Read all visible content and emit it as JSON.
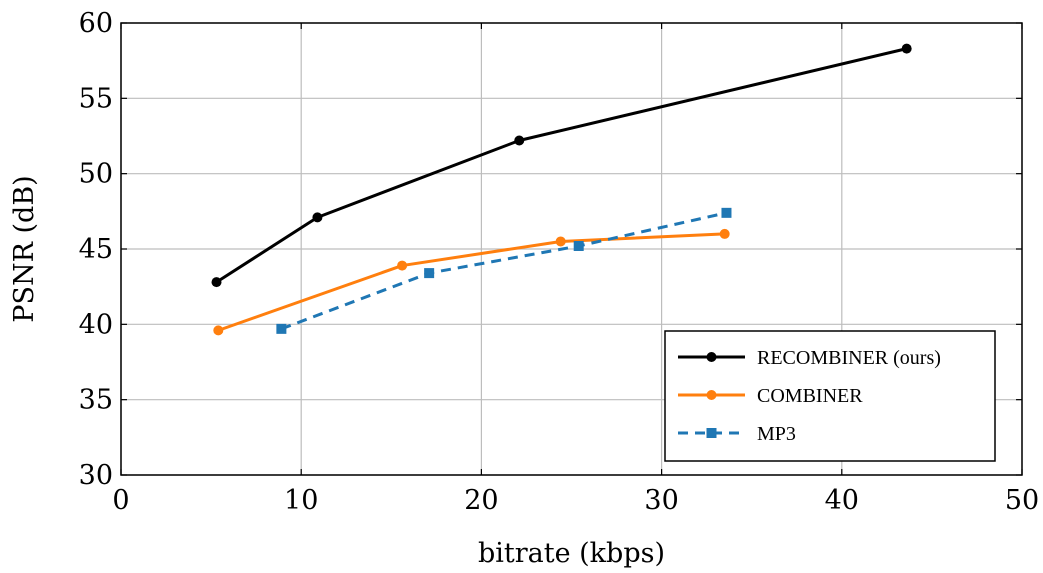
{
  "chart_data": {
    "type": "line",
    "title": "",
    "xlabel": "bitrate (kbps)",
    "ylabel": "PSNR (dB)",
    "xlim": [
      0,
      50
    ],
    "ylim": [
      30,
      60
    ],
    "xticks": [
      0,
      10,
      20,
      30,
      40,
      50
    ],
    "yticks": [
      30,
      35,
      40,
      45,
      50,
      55,
      60
    ],
    "grid": true,
    "legend_position": "bottom-right",
    "series": [
      {
        "name": "RECOMBINER (ours)",
        "color": "#000000",
        "marker": "circle",
        "line_style": "solid",
        "x": [
          5.3,
          10.9,
          22.1,
          43.6
        ],
        "y": [
          42.8,
          47.1,
          52.2,
          58.3
        ]
      },
      {
        "name": "COMBINER",
        "color": "#ff7f0e",
        "marker": "circle",
        "line_style": "solid",
        "x": [
          5.4,
          15.6,
          24.4,
          33.5
        ],
        "y": [
          39.6,
          43.9,
          45.5,
          46.0
        ]
      },
      {
        "name": "MP3",
        "color": "#1f77b4",
        "marker": "square",
        "line_style": "dashed",
        "x": [
          8.9,
          17.1,
          25.4,
          33.6
        ],
        "y": [
          39.7,
          43.4,
          45.2,
          47.4
        ]
      }
    ]
  }
}
